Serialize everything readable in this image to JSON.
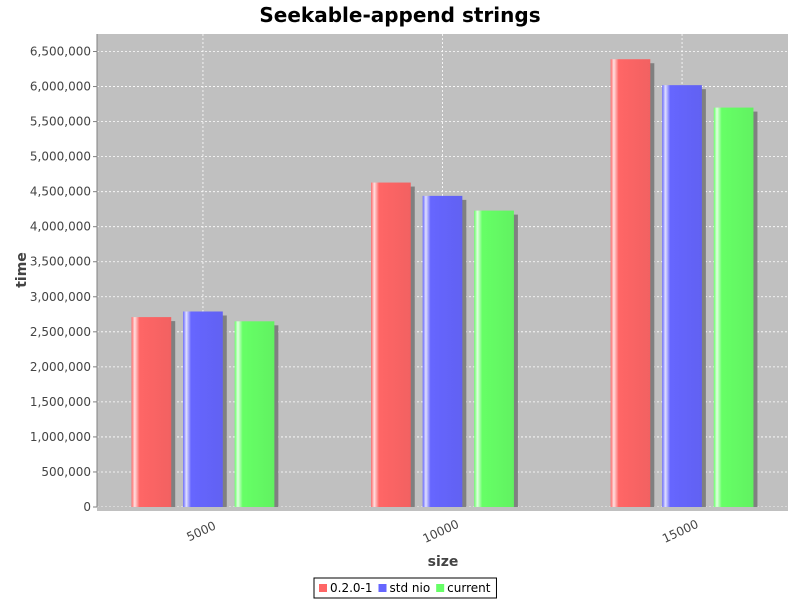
{
  "chart_data": {
    "type": "bar",
    "title": "Seekable-append strings",
    "xlabel": "size",
    "ylabel": "time",
    "categories": [
      "5000",
      "10000",
      "15000"
    ],
    "series": [
      {
        "name": "0.2.0-1",
        "color": "#ff6666",
        "values": [
          2710000,
          4630000,
          6390000
        ]
      },
      {
        "name": "std nio",
        "color": "#6666ff",
        "values": [
          2790000,
          4440000,
          6020000
        ]
      },
      {
        "name": "current",
        "color": "#66ff66",
        "values": [
          2650000,
          4230000,
          5700000
        ]
      }
    ],
    "ylim": [
      0,
      6750000
    ],
    "yticks": [
      0,
      500000,
      1000000,
      1500000,
      2000000,
      2500000,
      3000000,
      3500000,
      4000000,
      4500000,
      5000000,
      5500000,
      6000000,
      6500000
    ],
    "ytick_labels": [
      "0",
      "500,000",
      "1,000,000",
      "1,500,000",
      "2,000,000",
      "2,500,000",
      "3,000,000",
      "3,500,000",
      "4,000,000",
      "4,500,000",
      "5,000,000",
      "5,500,000",
      "6,000,000",
      "6,500,000"
    ],
    "grid": true,
    "plot_background": "#c0c0c0",
    "legend_position": "bottom"
  }
}
